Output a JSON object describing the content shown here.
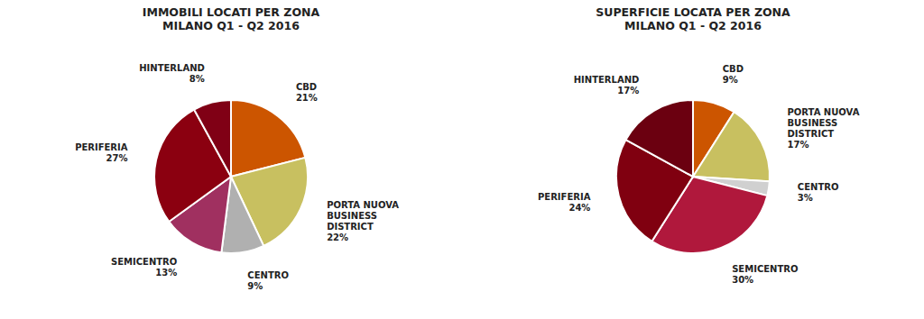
{
  "chart_data": [
    {
      "type": "pie",
      "title": "IMMOBILI LOCATI PER ZONA\nMILANO Q1 - Q2 2016",
      "categories": [
        "CBD",
        "PORTA NUOVA\nBUSINESS\nDISTRICT",
        "CENTRO",
        "SEMICENTRO",
        "PERIFERIA",
        "HINTERLAND"
      ],
      "values": [
        21,
        22,
        9,
        13,
        27,
        8
      ],
      "value_labels": [
        "21%",
        "22%",
        "9%",
        "13%",
        "27%",
        "8%"
      ],
      "data_labels": true,
      "colors": [
        "#CC5500",
        "#C8C060",
        "#B0B0B0",
        "#A03060",
        "#8B0010",
        "#800015"
      ]
    },
    {
      "type": "pie",
      "title": "SUPERFICIE LOCATA PER ZONA\nMILANO Q1 - Q2 2016",
      "categories": [
        "CBD",
        "PORTA NUOVA\nBUSINESS\nDISTRICT",
        "CENTRO",
        "SEMICENTRO",
        "PERIFERIA",
        "HINTERLAND"
      ],
      "values": [
        9,
        17,
        3,
        30,
        24,
        17
      ],
      "value_labels": [
        "9%",
        "17%",
        "3%",
        "30%",
        "24%",
        "17%"
      ],
      "data_labels": true,
      "colors": [
        "#CC5500",
        "#C8C060",
        "#D0D0D0",
        "#B0183C",
        "#800010",
        "#6B0010"
      ]
    }
  ]
}
